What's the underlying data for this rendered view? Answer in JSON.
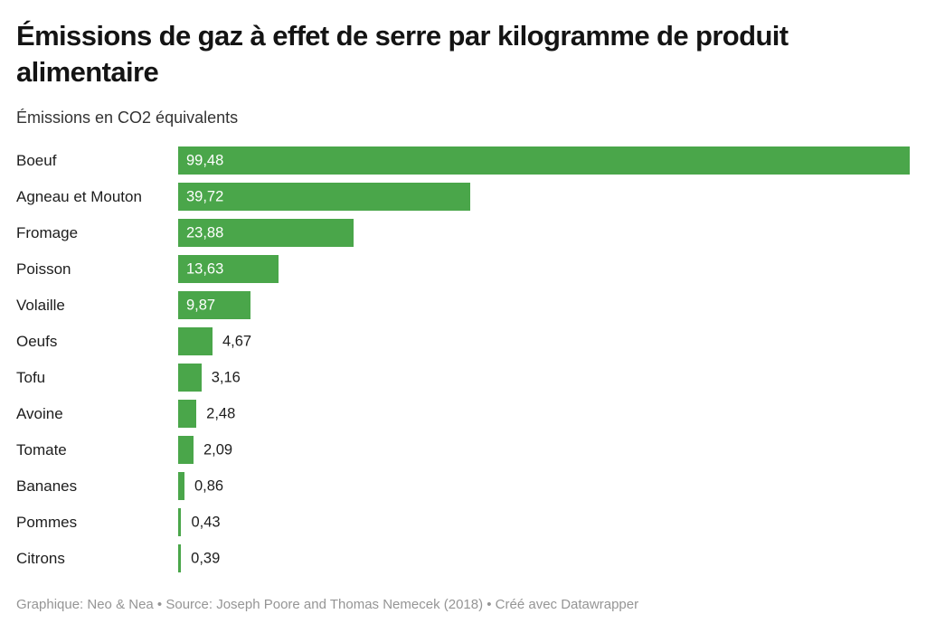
{
  "header": {
    "title": "Émissions de gaz à effet de serre par kilogramme de produit alimentaire",
    "subtitle": "Émissions en CO2 équivalents"
  },
  "chart_data": {
    "type": "bar",
    "orientation": "horizontal",
    "title": "Émissions de gaz à effet de serre par kilogramme de produit alimentaire",
    "subtitle": "Émissions en CO2 équivalents",
    "categories": [
      "Boeuf",
      "Agneau et Mouton",
      "Fromage",
      "Poisson",
      "Volaille",
      "Oeufs",
      "Tofu",
      "Avoine",
      "Tomate",
      "Bananes",
      "Pommes",
      "Citrons"
    ],
    "values": [
      99.48,
      39.72,
      23.88,
      13.63,
      9.87,
      4.67,
      3.16,
      2.48,
      2.09,
      0.86,
      0.43,
      0.39
    ],
    "value_labels": [
      "99,48",
      "39,72",
      "23,88",
      "13,63",
      "9,87",
      "4,67",
      "3,16",
      "2,48",
      "2,09",
      "0,86",
      "0,43",
      "0,39"
    ],
    "xlim": [
      0,
      99.48
    ],
    "grid": false,
    "legend": false,
    "bar_color": "#4aa64a"
  },
  "footer": {
    "credit": "Graphique: Neo & Nea • Source: Joseph Poore and Thomas Nemecek (2018) • Créé avec Datawrapper"
  },
  "colors": {
    "bar": "#4aa64a",
    "title": "#141414",
    "subtitle": "#333333",
    "category_label": "#1d1d1d",
    "value_inside": "#ffffff",
    "value_outside": "#1d1d1d",
    "credit": "#959595",
    "background": "#ffffff"
  }
}
